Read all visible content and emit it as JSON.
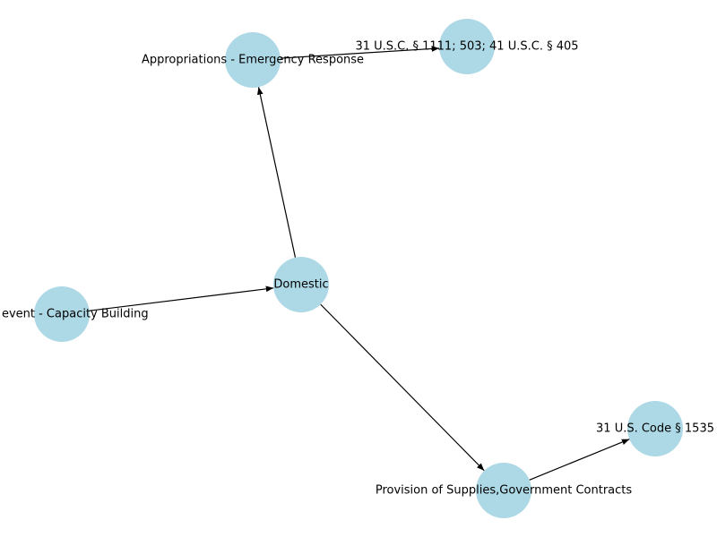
{
  "graph": {
    "node_color": "#add8e6",
    "edge_color": "#000000",
    "nodes": [
      {
        "id": "appropriations",
        "label": "Appropriations - Emergency Response"
      },
      {
        "id": "usc1111",
        "label": "31 U.S.C. § 1111; 503; 41 U.S.C. § 405"
      },
      {
        "id": "domestic",
        "label": "Domestic"
      },
      {
        "id": "capacity",
        "label": "ring event - Capacity Building"
      },
      {
        "id": "provision",
        "label": "Provision of Supplies,Government Contracts"
      },
      {
        "id": "usc1535",
        "label": "31 U.S. Code § 1535"
      }
    ],
    "edges": [
      {
        "source": "appropriations",
        "target": "usc1111"
      },
      {
        "source": "domestic",
        "target": "appropriations"
      },
      {
        "source": "capacity",
        "target": "domestic"
      },
      {
        "source": "domestic",
        "target": "provision"
      },
      {
        "source": "provision",
        "target": "usc1535"
      }
    ]
  }
}
